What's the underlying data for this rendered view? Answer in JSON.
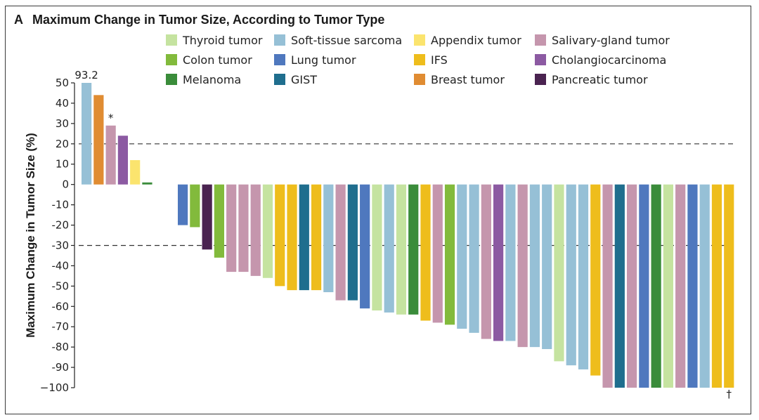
{
  "chart_data": {
    "type": "bar",
    "panel_letter": "A",
    "title": "Maximum Change in Tumor Size, According to Tumor Type",
    "ylabel": "Maximum Change in Tumor Size (%)",
    "ylim": [
      -100,
      50
    ],
    "yticks": [
      50,
      40,
      30,
      20,
      10,
      0,
      -10,
      -20,
      -30,
      -40,
      -50,
      -60,
      -70,
      -80,
      -90,
      -100
    ],
    "ytick_labels": [
      "50",
      "40",
      "30",
      "20",
      "10",
      "0",
      "-10",
      "-20",
      "-30",
      "-40",
      "-50",
      "-60",
      "-70",
      "-80",
      "-90",
      "−100"
    ],
    "reference_lines": [
      20,
      -30
    ],
    "grid": false,
    "legend_position": "top",
    "legend": [
      {
        "name": "Thyroid tumor",
        "color": "#c5e3a0"
      },
      {
        "name": "Soft-tissue sarcoma",
        "color": "#96c0d6"
      },
      {
        "name": "Appendix tumor",
        "color": "#fbe46e"
      },
      {
        "name": "Salivary-gland tumor",
        "color": "#c596ad"
      },
      {
        "name": "Colon tumor",
        "color": "#82ba3c"
      },
      {
        "name": "Lung tumor",
        "color": "#4f78be"
      },
      {
        "name": "IFS",
        "color": "#eebd1c"
      },
      {
        "name": "Cholangiocarcinoma",
        "color": "#8c5aa2"
      },
      {
        "name": "Melanoma",
        "color": "#3a8c3a"
      },
      {
        "name": "GIST",
        "color": "#1f6e8e"
      },
      {
        "name": "Breast tumor",
        "color": "#e08c32"
      },
      {
        "name": "Pancreatic tumor",
        "color": "#4a2350"
      }
    ],
    "bars": [
      {
        "type": "Soft-tissue sarcoma",
        "value": 50,
        "label": "93.2"
      },
      {
        "type": "Breast tumor",
        "value": 44
      },
      {
        "type": "Salivary-gland tumor",
        "value": 29,
        "label": "*"
      },
      {
        "type": "Cholangiocarcinoma",
        "value": 24
      },
      {
        "type": "Appendix tumor",
        "value": 12
      },
      {
        "type": "Melanoma",
        "value": 1
      },
      {
        "type": "Lung tumor",
        "value": -20
      },
      {
        "type": "Colon tumor",
        "value": -21
      },
      {
        "type": "Pancreatic tumor",
        "value": -32
      },
      {
        "type": "Colon tumor",
        "value": -36
      },
      {
        "type": "Salivary-gland tumor",
        "value": -43
      },
      {
        "type": "Salivary-gland tumor",
        "value": -43
      },
      {
        "type": "Salivary-gland tumor",
        "value": -45
      },
      {
        "type": "Thyroid tumor",
        "value": -46
      },
      {
        "type": "IFS",
        "value": -50
      },
      {
        "type": "IFS",
        "value": -52
      },
      {
        "type": "GIST",
        "value": -52
      },
      {
        "type": "IFS",
        "value": -52
      },
      {
        "type": "Soft-tissue sarcoma",
        "value": -53
      },
      {
        "type": "Salivary-gland tumor",
        "value": -57
      },
      {
        "type": "GIST",
        "value": -57
      },
      {
        "type": "Lung tumor",
        "value": -61
      },
      {
        "type": "Thyroid tumor",
        "value": -62
      },
      {
        "type": "Soft-tissue sarcoma",
        "value": -63
      },
      {
        "type": "Thyroid tumor",
        "value": -64
      },
      {
        "type": "Melanoma",
        "value": -64
      },
      {
        "type": "IFS",
        "value": -67
      },
      {
        "type": "Salivary-gland tumor",
        "value": -68
      },
      {
        "type": "Colon tumor",
        "value": -69
      },
      {
        "type": "Soft-tissue sarcoma",
        "value": -71
      },
      {
        "type": "Soft-tissue sarcoma",
        "value": -73
      },
      {
        "type": "Salivary-gland tumor",
        "value": -76
      },
      {
        "type": "Cholangiocarcinoma",
        "value": -77
      },
      {
        "type": "Soft-tissue sarcoma",
        "value": -77
      },
      {
        "type": "Salivary-gland tumor",
        "value": -80
      },
      {
        "type": "Soft-tissue sarcoma",
        "value": -80
      },
      {
        "type": "Soft-tissue sarcoma",
        "value": -81
      },
      {
        "type": "Thyroid tumor",
        "value": -87
      },
      {
        "type": "Soft-tissue sarcoma",
        "value": -89
      },
      {
        "type": "Soft-tissue sarcoma",
        "value": -91
      },
      {
        "type": "IFS",
        "value": -94
      },
      {
        "type": "Salivary-gland tumor",
        "value": -100
      },
      {
        "type": "GIST",
        "value": -100
      },
      {
        "type": "Salivary-gland tumor",
        "value": -100
      },
      {
        "type": "Lung tumor",
        "value": -100
      },
      {
        "type": "Melanoma",
        "value": -100
      },
      {
        "type": "Thyroid tumor",
        "value": -100
      },
      {
        "type": "Salivary-gland tumor",
        "value": -100
      },
      {
        "type": "Lung tumor",
        "value": -100
      },
      {
        "type": "Soft-tissue sarcoma",
        "value": -100
      },
      {
        "type": "IFS",
        "value": -100
      },
      {
        "type": "IFS",
        "value": -100,
        "label": "†"
      }
    ]
  }
}
